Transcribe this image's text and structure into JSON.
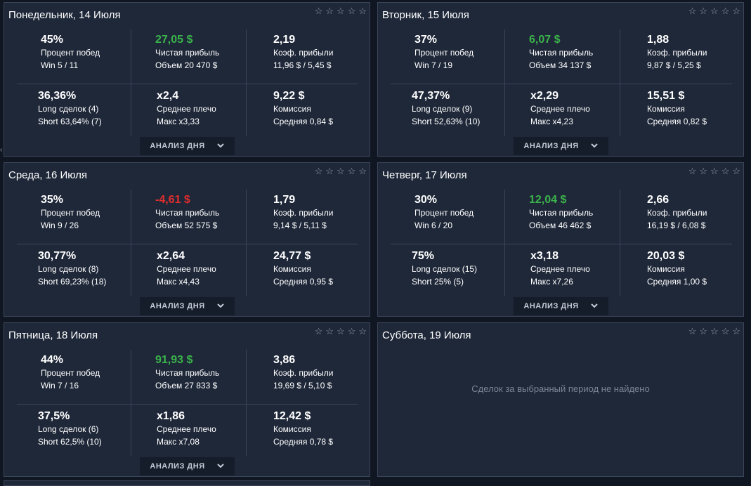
{
  "days": [
    {
      "title": "Понедельник, 14 Июля",
      "winrate": "45%",
      "winrate_label": "Процент побед",
      "win": "Win 5 / 11",
      "profit": "27,05 $",
      "profit_sign": "pos",
      "profit_label": "Чистая прибыль",
      "volume": "Объем 20 470 $",
      "pf": "2,19",
      "pf_label": "Коэф. прибыли",
      "pf_detail": "11,96 $ / 5,45 $",
      "long": "36,36%",
      "long_label": "Long сделок (4)",
      "short": "Short 63,64% (7)",
      "lev": "x2,4",
      "lev_label": "Среднее плечо",
      "lev_max": "Макс x3,33",
      "fee": "9,22 $",
      "fee_label": "Комиссия",
      "fee_avg": "Средняя 0,84 $",
      "button": "АНАЛИЗ ДНЯ"
    },
    {
      "title": "Вторник, 15 Июля",
      "winrate": "37%",
      "winrate_label": "Процент побед",
      "win": "Win 7 / 19",
      "profit": "6,07 $",
      "profit_sign": "pos",
      "profit_label": "Чистая прибыль",
      "volume": "Объем 34 137 $",
      "pf": "1,88",
      "pf_label": "Коэф. прибыли",
      "pf_detail": "9,87 $ / 5,25 $",
      "long": "47,37%",
      "long_label": "Long сделок (9)",
      "short": "Short 52,63% (10)",
      "lev": "x2,29",
      "lev_label": "Среднее плечо",
      "lev_max": "Макс x4,23",
      "fee": "15,51 $",
      "fee_label": "Комиссия",
      "fee_avg": "Средняя 0,82 $",
      "button": "АНАЛИЗ ДНЯ"
    },
    {
      "title": "Среда, 16 Июля",
      "winrate": "35%",
      "winrate_label": "Процент побед",
      "win": "Win 9 / 26",
      "profit": "-4,61 $",
      "profit_sign": "neg",
      "profit_label": "Чистая прибыль",
      "volume": "Объем 52 575 $",
      "pf": "1,79",
      "pf_label": "Коэф. прибыли",
      "pf_detail": "9,14 $ / 5,11 $",
      "long": "30,77%",
      "long_label": "Long сделок (8)",
      "short": "Short 69,23% (18)",
      "lev": "x2,64",
      "lev_label": "Среднее плечо",
      "lev_max": "Макс x4,43",
      "fee": "24,77 $",
      "fee_label": "Комиссия",
      "fee_avg": "Средняя 0,95 $",
      "button": "АНАЛИЗ ДНЯ"
    },
    {
      "title": "Четверг, 17 Июля",
      "winrate": "30%",
      "winrate_label": "Процент побед",
      "win": "Win 6 / 20",
      "profit": "12,04 $",
      "profit_sign": "pos",
      "profit_label": "Чистая прибыль",
      "volume": "Объем 46 462 $",
      "pf": "2,66",
      "pf_label": "Коэф. прибыли",
      "pf_detail": "16,19 $ / 6,08 $",
      "long": "75%",
      "long_label": "Long сделок (15)",
      "short": "Short 25% (5)",
      "lev": "x3,18",
      "lev_label": "Среднее плечо",
      "lev_max": "Макс x7,26",
      "fee": "20,03 $",
      "fee_label": "Комиссия",
      "fee_avg": "Средняя 1,00 $",
      "button": "АНАЛИЗ ДНЯ"
    },
    {
      "title": "Пятница, 18 Июля",
      "winrate": "44%",
      "winrate_label": "Процент побед",
      "win": "Win 7 / 16",
      "profit": "91,93 $",
      "profit_sign": "pos",
      "profit_label": "Чистая прибыль",
      "volume": "Объем 27 833 $",
      "pf": "3,86",
      "pf_label": "Коэф. прибыли",
      "pf_detail": "19,69 $ / 5,10 $",
      "long": "37,5%",
      "long_label": "Long сделок (6)",
      "short": "Short 62,5% (10)",
      "lev": "x1,86",
      "lev_label": "Среднее плечо",
      "lev_max": "Макс x7,08",
      "fee": "12,42 $",
      "fee_label": "Комиссия",
      "fee_avg": "Средняя 0,78 $",
      "button": "АНАЛИЗ ДНЯ"
    },
    {
      "title": "Суббота, 19 Июля",
      "empty_text": "Сделок за выбранный период не найдено"
    }
  ],
  "star_glyph": "☆",
  "star_count": 5,
  "colors": {
    "card_bg": "#1f2839",
    "page_bg": "#111722",
    "positive": "#3ab34a",
    "negative": "#e02d2d",
    "border": "#3a4558"
  }
}
